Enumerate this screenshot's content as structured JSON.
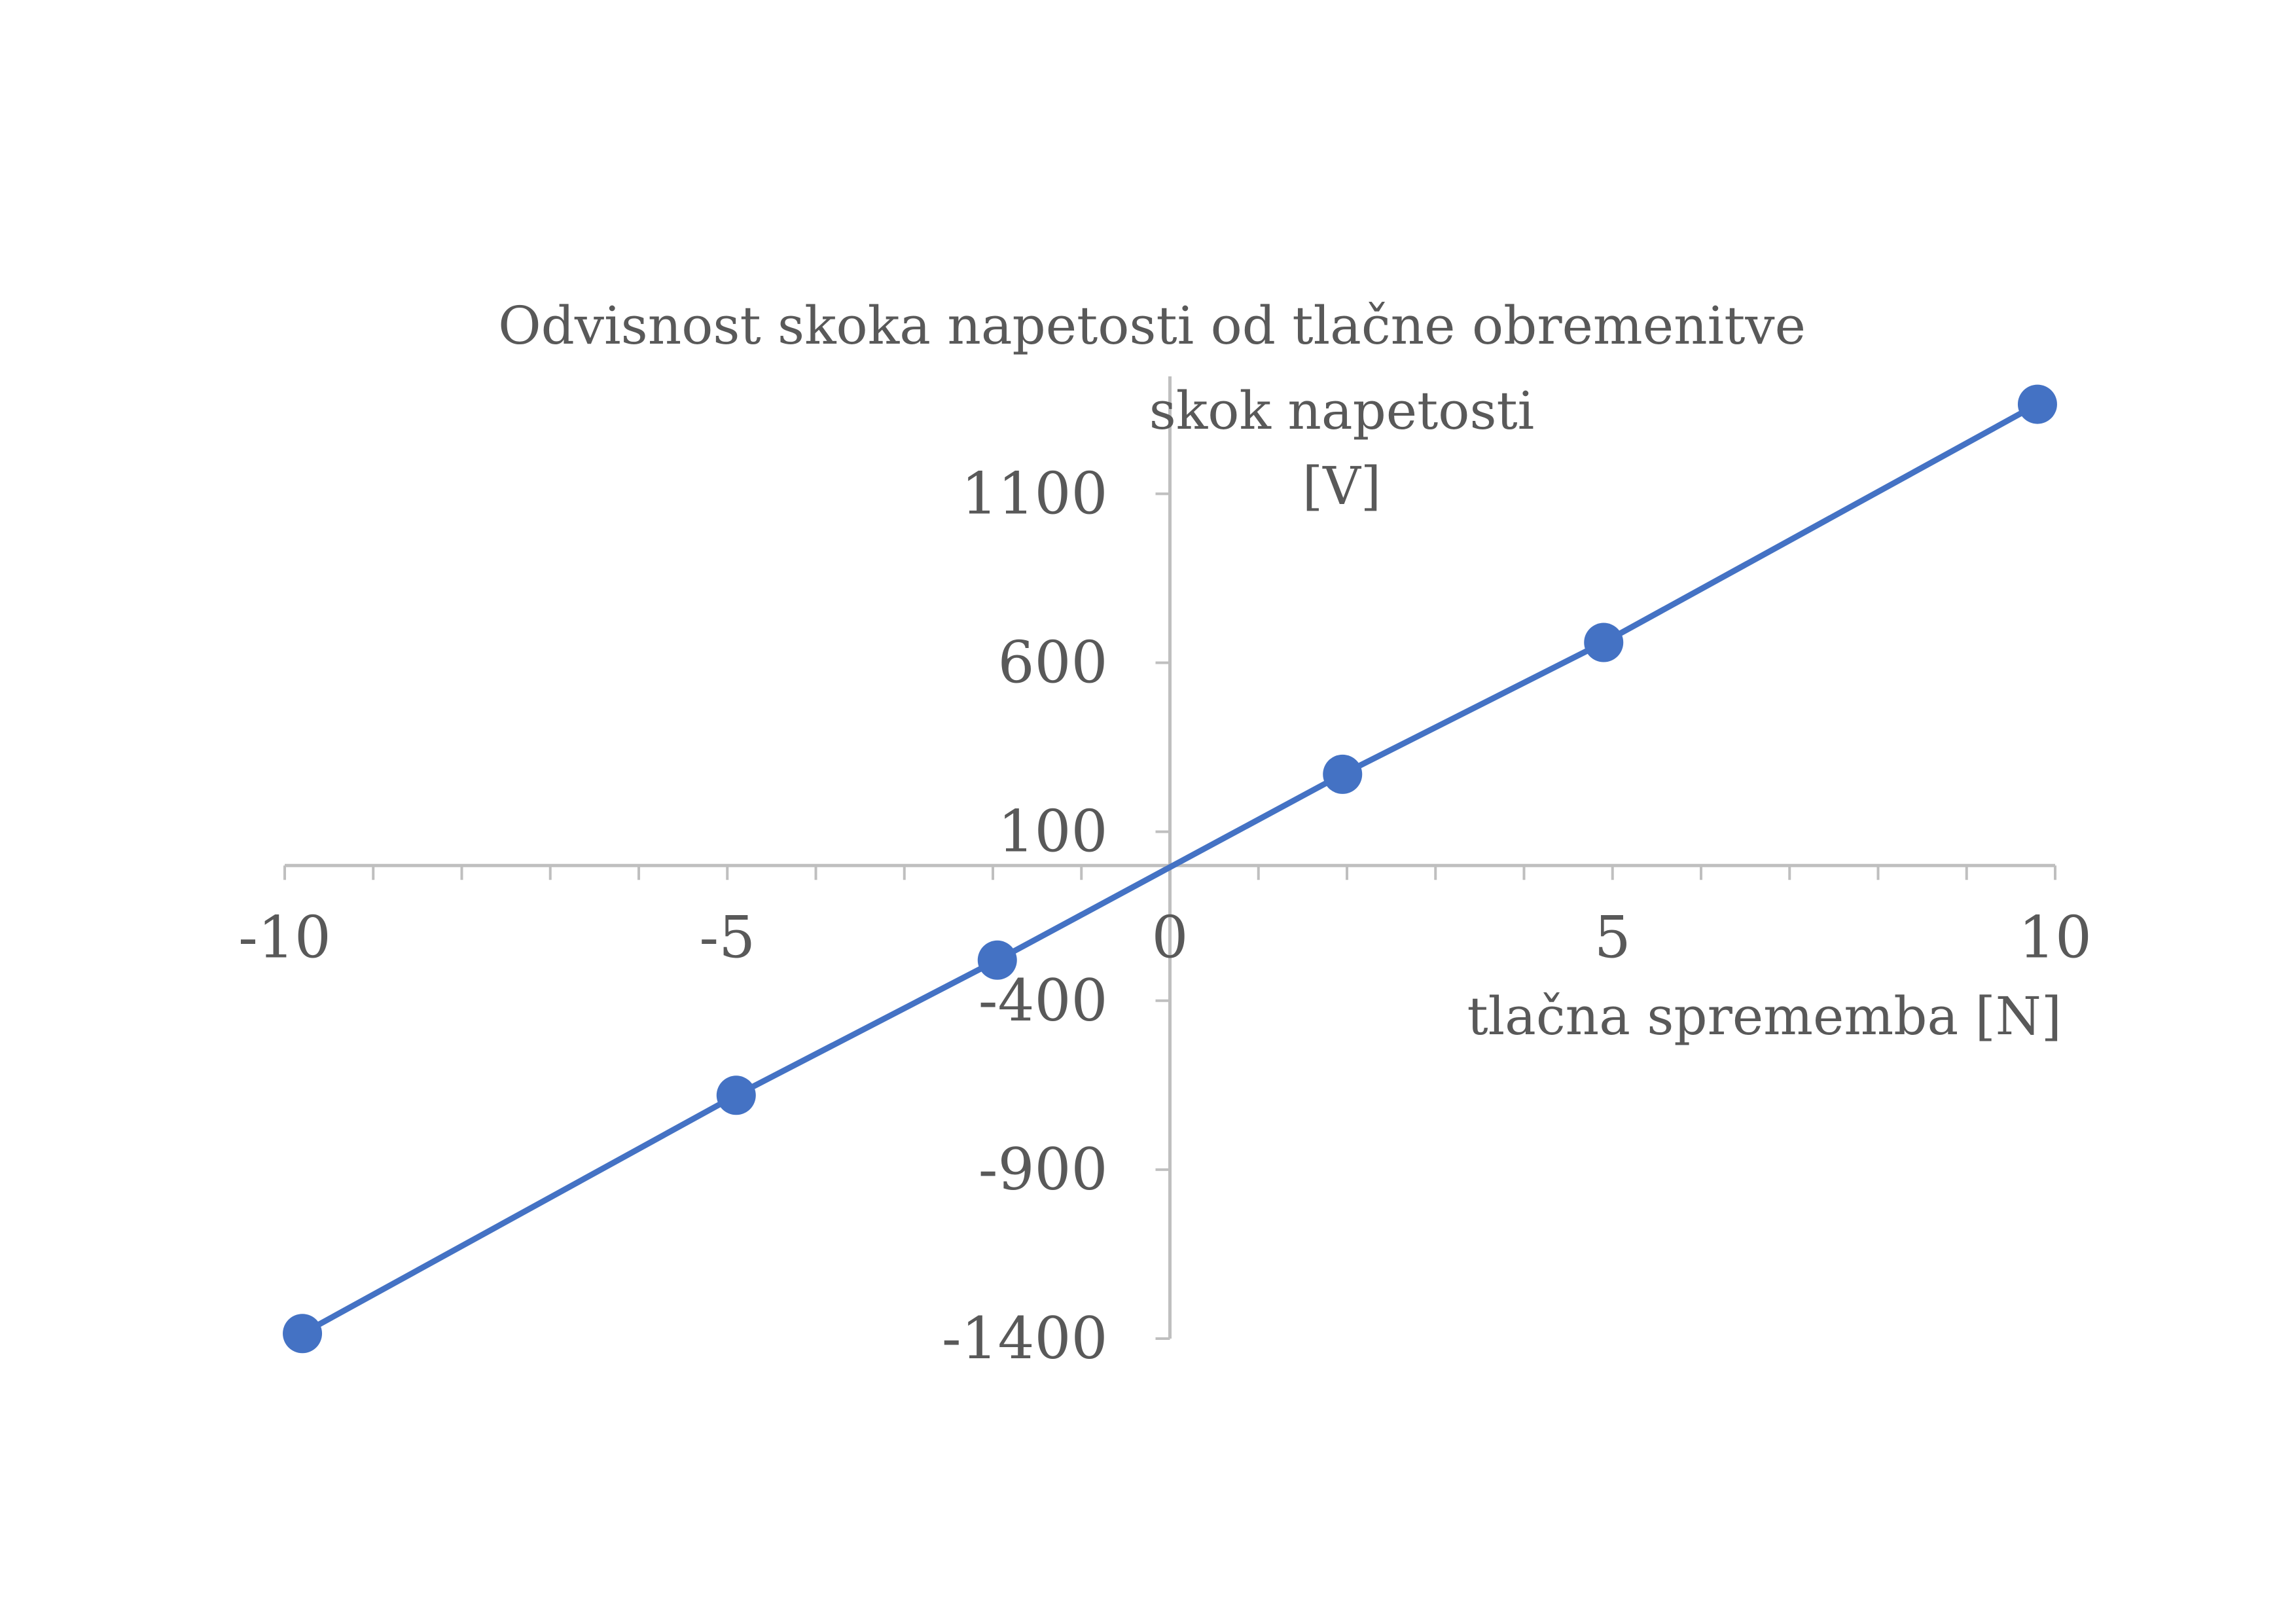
{
  "chart_data": {
    "type": "scatter",
    "title": "Odvisnost skoka napetosti od tlačne obremenitve",
    "xlabel": "tlačna sprememba [N]",
    "ylabel_lines": [
      "skok napetosti",
      "[V]"
    ],
    "xlim": [
      -10,
      10
    ],
    "ylim": [
      -1400,
      1370
    ],
    "x_ticks": [
      -10,
      -5,
      0,
      5,
      10
    ],
    "x_minor_step": 1,
    "y_ticks": [
      -1400,
      -900,
      -400,
      100,
      600,
      1100
    ],
    "y_tick_labels": [
      "-1400",
      "-900",
      "-400",
      "100",
      "600",
      "1100"
    ],
    "x_tick_labels": [
      "-10",
      "-5",
      "0",
      "5",
      "10"
    ],
    "grid": false,
    "legend": "none",
    "series": [
      {
        "color": "#4472c4",
        "markers": true,
        "points": [
          {
            "x": -9.8,
            "y": -1385
          },
          {
            "x": -4.9,
            "y": -680
          },
          {
            "x": -1.95,
            "y": -280
          },
          {
            "x": 1.95,
            "y": 270
          },
          {
            "x": 4.9,
            "y": 660
          },
          {
            "x": 9.8,
            "y": 1365
          }
        ]
      }
    ]
  }
}
